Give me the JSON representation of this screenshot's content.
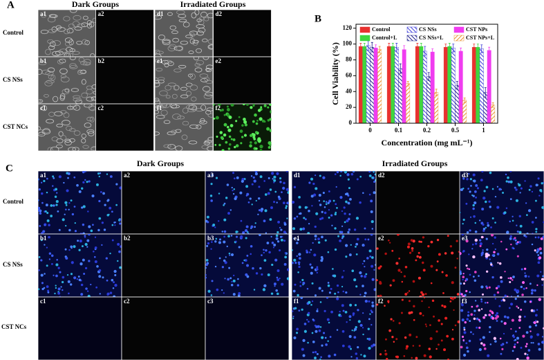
{
  "panel_a": {
    "label": "A",
    "groups": [
      "Dark Groups",
      "Irradiated Groups"
    ],
    "rows": [
      "Control",
      "CS NSs",
      "CST NCs"
    ],
    "tiles": [
      [
        "a1",
        "a2",
        "d1",
        "d2"
      ],
      [
        "b1",
        "b2",
        "e1",
        "e2"
      ],
      [
        "c1",
        "c2",
        "f1",
        "f2"
      ]
    ]
  },
  "panel_b": {
    "label": "B"
  },
  "chart_data": {
    "type": "bar",
    "x_label": "Concentration (mg mL⁻¹)",
    "y_label": "Cell Viability (%)",
    "categories": [
      "0",
      "0.1",
      "0.2",
      "0.5",
      "1"
    ],
    "series": [
      {
        "name": "Control",
        "color": "#e8312f",
        "hatch": false,
        "values": [
          97,
          97,
          97,
          96,
          96
        ],
        "errors": [
          4,
          4,
          4,
          4,
          4
        ]
      },
      {
        "name": "Control+L",
        "color": "#3fd63f",
        "hatch": false,
        "values": [
          97,
          97,
          97,
          97,
          96
        ],
        "errors": [
          4,
          4,
          4,
          4,
          4
        ]
      },
      {
        "name": "CS NSs",
        "color": "#3a3ad8",
        "hatch": true,
        "values": [
          98,
          96,
          91,
          95,
          94
        ],
        "errors": [
          6,
          5,
          6,
          5,
          5
        ]
      },
      {
        "name": "CS NSs+L",
        "color": "#1a1a8a",
        "hatch": true,
        "values": [
          96,
          69,
          59,
          48,
          39
        ],
        "errors": [
          6,
          6,
          5,
          5,
          6
        ]
      },
      {
        "name": "CST NPs",
        "color": "#f03cf0",
        "hatch": false,
        "values": [
          95,
          93,
          90,
          91,
          92
        ],
        "errors": [
          4,
          5,
          4,
          4,
          4
        ]
      },
      {
        "name": "CST NPs+L",
        "color": "#e8902a",
        "hatch": true,
        "values": [
          93,
          50,
          39,
          29,
          23
        ],
        "errors": [
          4,
          3,
          4,
          3,
          3
        ]
      }
    ],
    "ylim": [
      0,
      125
    ],
    "yticks": [
      0,
      20,
      40,
      60,
      80,
      100,
      120
    ]
  },
  "panel_c": {
    "label": "C",
    "groups": [
      "Dark Groups",
      "Irradiated Groups"
    ],
    "rows": [
      "Control",
      "CS NSs",
      "CST NCs"
    ],
    "tiles": [
      [
        "a1",
        "a2",
        "a3",
        "d1",
        "d2",
        "d3"
      ],
      [
        "b1",
        "b2",
        "b3",
        "e1",
        "e2",
        "e3"
      ],
      [
        "c1",
        "c2",
        "c3",
        "f1",
        "f2",
        "f3"
      ]
    ]
  }
}
